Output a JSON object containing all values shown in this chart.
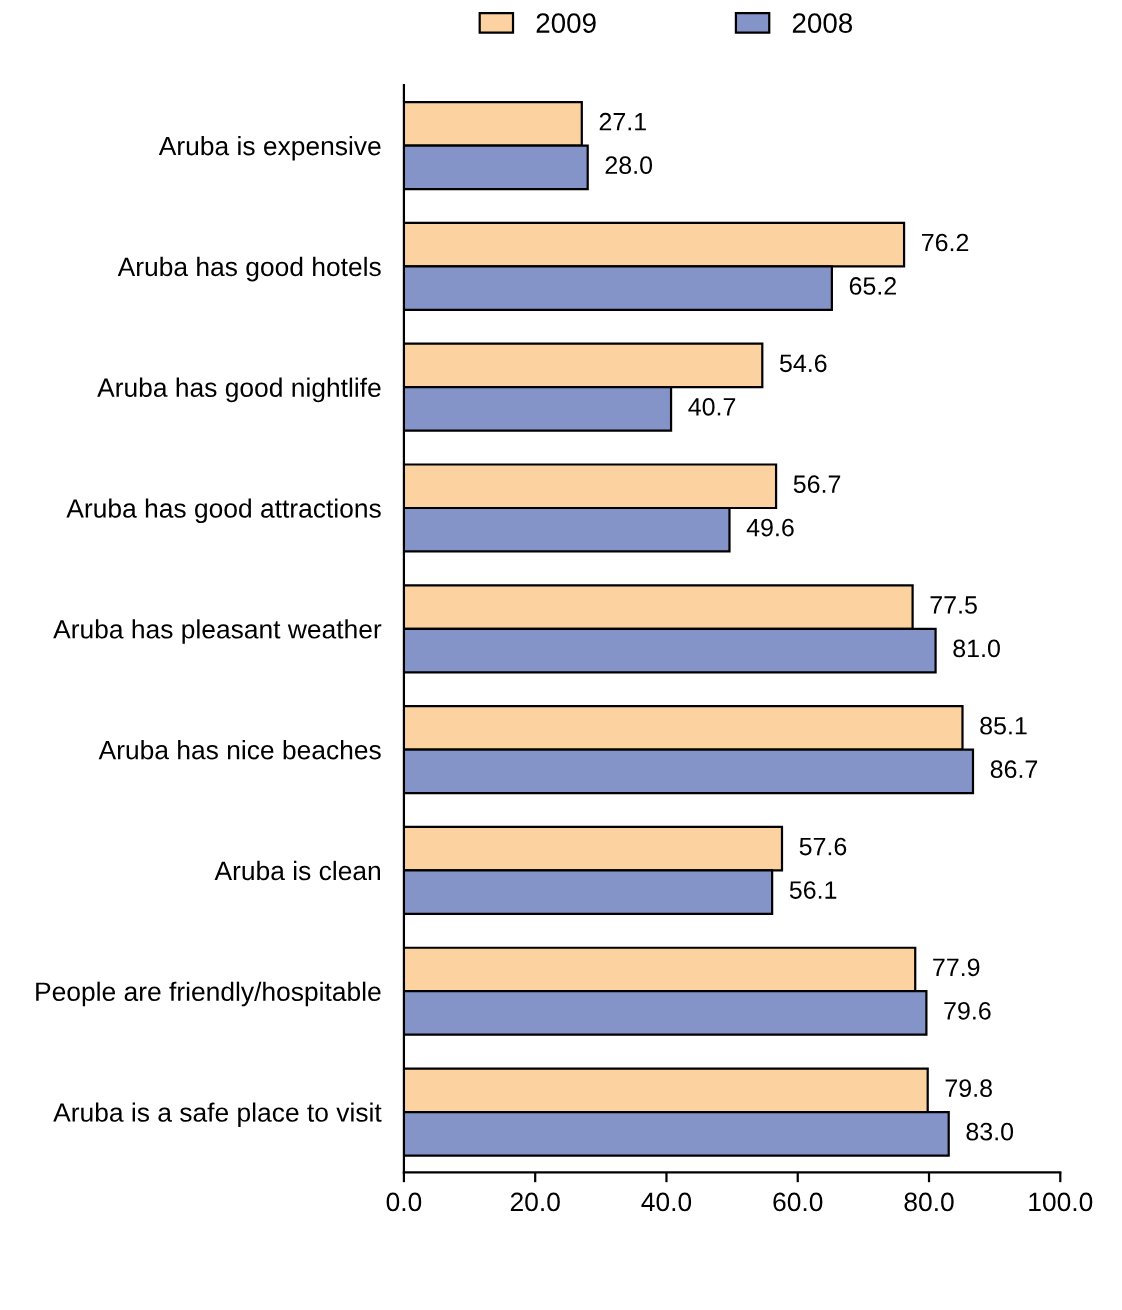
{
  "chart_data": {
    "type": "bar",
    "orientation": "horizontal",
    "categories": [
      "Aruba is expensive",
      "Aruba has good hotels",
      "Aruba has good nightlife",
      "Aruba has good attractions",
      "Aruba has pleasant weather",
      "Aruba has nice beaches",
      "Aruba is clean",
      "People are friendly/hospitable",
      "Aruba is a safe place to visit"
    ],
    "series": [
      {
        "name": "2009",
        "color": "#fcd3a0",
        "values": [
          27.1,
          76.2,
          54.6,
          56.7,
          77.5,
          85.1,
          57.6,
          77.9,
          79.8
        ],
        "value_labels": [
          "27.1",
          "76.2",
          "54.6",
          "56.7",
          "77.5",
          "85.1",
          "57.6",
          "77.9",
          "79.8"
        ]
      },
      {
        "name": "2008",
        "color": "#8594c8",
        "values": [
          28.0,
          65.2,
          40.7,
          49.6,
          81.0,
          86.7,
          56.1,
          79.6,
          83.0
        ],
        "value_labels": [
          "28.0",
          "65.2",
          "40.7",
          "49.6",
          "81.0",
          "86.7",
          "56.1",
          "79.6",
          "83.0"
        ]
      }
    ],
    "xlim": [
      0,
      100
    ],
    "xticks": [
      {
        "value": 0,
        "label": "0.0"
      },
      {
        "value": 20,
        "label": "20.0"
      },
      {
        "value": 40,
        "label": "40.0"
      },
      {
        "value": 60,
        "label": "60.0"
      },
      {
        "value": 80,
        "label": "80.0"
      },
      {
        "value": 100,
        "label": "100.0"
      }
    ],
    "legend": "top",
    "grid": false
  }
}
